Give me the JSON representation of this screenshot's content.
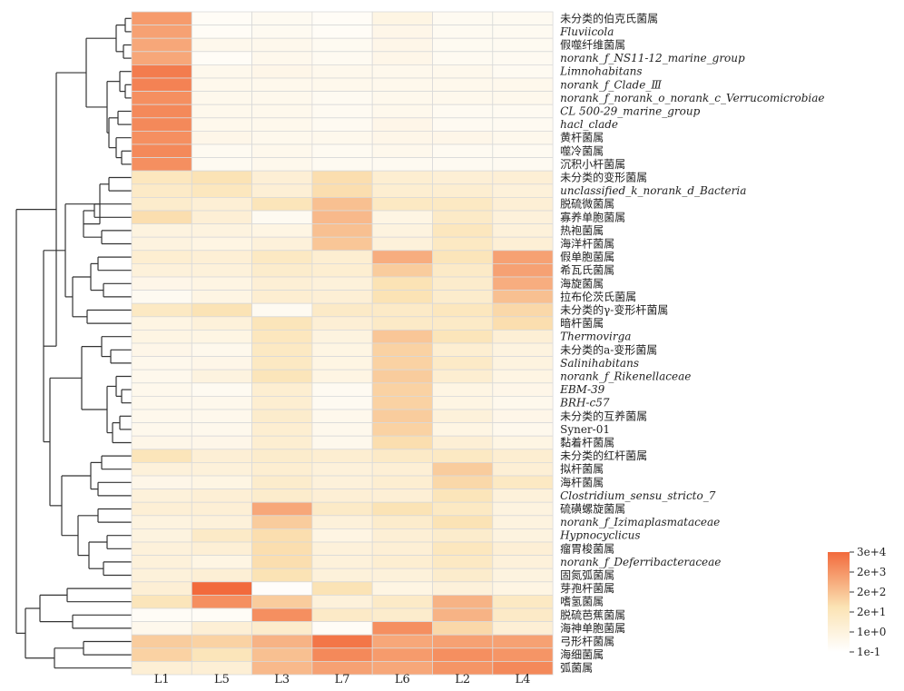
{
  "chart_data": {
    "type": "heatmap",
    "title": "",
    "xlabel": "",
    "ylabel": "",
    "columns": [
      "L1",
      "L5",
      "L3",
      "L7",
      "L6",
      "L2",
      "L4"
    ],
    "rows": [
      {
        "label": "未分类的伯克氏菌属",
        "italic": false,
        "values": [
          2.8,
          0.2,
          0.3,
          0.2,
          0.6,
          0.3,
          0.3
        ]
      },
      {
        "label": "Fluviicola",
        "italic": true,
        "values": [
          2.7,
          0.2,
          0.3,
          0.2,
          0.5,
          0.3,
          0.3
        ]
      },
      {
        "label": "假噬纤维菌属",
        "italic": false,
        "values": [
          2.6,
          0.4,
          0.4,
          0.3,
          0.5,
          0.3,
          0.3
        ]
      },
      {
        "label": "norank_f_NS11-12_marine_group",
        "italic": true,
        "values": [
          2.6,
          0.2,
          0.4,
          0.3,
          0.5,
          0.3,
          0.3
        ]
      },
      {
        "label": "Limnohabitans",
        "italic": true,
        "values": [
          3.3,
          0.4,
          0.5,
          0.4,
          0.4,
          0.4,
          0.3
        ]
      },
      {
        "label": "norank_f_Clade_Ⅲ",
        "italic": true,
        "values": [
          3.2,
          0.4,
          0.4,
          0.4,
          0.4,
          0.4,
          0.4
        ]
      },
      {
        "label": "norank_f_norank_o_norank_c_Verrucomicrobiae",
        "italic": true,
        "values": [
          3.0,
          0.4,
          0.4,
          0.3,
          0.4,
          0.4,
          0.4
        ]
      },
      {
        "label": "CL 500-29_marine_group",
        "italic": true,
        "values": [
          3.1,
          0.4,
          0.4,
          0.3,
          0.4,
          0.3,
          0.3
        ]
      },
      {
        "label": "hacl_clade",
        "italic": true,
        "values": [
          3.1,
          0.4,
          0.4,
          0.3,
          0.5,
          0.3,
          0.3
        ]
      },
      {
        "label": "黄杆菌属",
        "italic": false,
        "values": [
          3.0,
          0.5,
          0.4,
          0.4,
          0.5,
          0.5,
          0.4
        ]
      },
      {
        "label": "噬冷菌属",
        "italic": false,
        "values": [
          3.1,
          0.3,
          0.4,
          0.3,
          0.4,
          0.3,
          0.3
        ]
      },
      {
        "label": "沉积小杆菌属",
        "italic": false,
        "values": [
          3.0,
          0.3,
          0.4,
          0.3,
          0.3,
          0.3,
          0.3
        ]
      },
      {
        "label": "未分类的变形菌属",
        "italic": false,
        "values": [
          1.4,
          1.6,
          0.9,
          1.7,
          1.0,
          0.9,
          0.9
        ]
      },
      {
        "label": "unclassified_k_norank_d_Bacteria",
        "italic": true,
        "values": [
          1.2,
          1.4,
          0.9,
          1.7,
          1.0,
          1.0,
          0.8
        ]
      },
      {
        "label": "脱硫微菌属",
        "italic": false,
        "values": [
          1.1,
          0.9,
          1.5,
          2.2,
          1.3,
          1.3,
          0.9
        ]
      },
      {
        "label": "寡养单胞菌属",
        "italic": false,
        "values": [
          1.7,
          0.9,
          0.3,
          2.3,
          0.6,
          1.2,
          0.8
        ]
      },
      {
        "label": "热袍菌属",
        "italic": false,
        "values": [
          0.7,
          0.7,
          0.6,
          2.2,
          0.7,
          1.4,
          0.8
        ]
      },
      {
        "label": "海洋杆菌属",
        "italic": false,
        "values": [
          0.7,
          0.6,
          0.8,
          2.1,
          0.8,
          1.3,
          0.9
        ]
      },
      {
        "label": "假单胞菌属",
        "italic": false,
        "values": [
          1.0,
          0.9,
          1.3,
          1.0,
          2.5,
          1.5,
          2.7
        ]
      },
      {
        "label": "希瓦氏菌属",
        "italic": false,
        "values": [
          0.8,
          0.8,
          1.1,
          1.0,
          2.0,
          1.2,
          2.7
        ]
      },
      {
        "label": "海旋菌属",
        "italic": false,
        "values": [
          0.5,
          0.6,
          0.9,
          0.8,
          1.6,
          1.1,
          2.5
        ]
      },
      {
        "label": "拉布伦茨氏菌属",
        "italic": false,
        "values": [
          0.3,
          0.6,
          1.0,
          0.9,
          1.6,
          1.1,
          2.2
        ]
      },
      {
        "label": "未分类的γ-变形杆菌属",
        "italic": false,
        "values": [
          1.3,
          1.6,
          0.3,
          1.2,
          1.2,
          1.4,
          1.8
        ]
      },
      {
        "label": "暗杆菌属",
        "italic": false,
        "values": [
          0.6,
          0.8,
          1.5,
          0.9,
          1.2,
          1.2,
          1.7
        ]
      },
      {
        "label": "Thermovirga",
        "italic": true,
        "values": [
          0.6,
          0.6,
          1.4,
          0.7,
          2.1,
          1.5,
          0.9
        ]
      },
      {
        "label": "未分类的a-变形菌属",
        "italic": false,
        "values": [
          0.5,
          0.4,
          1.3,
          0.6,
          1.9,
          1.0,
          0.7
        ]
      },
      {
        "label": "Salinihabitans",
        "italic": true,
        "values": [
          0.4,
          0.5,
          1.3,
          0.6,
          1.9,
          1.2,
          0.7
        ]
      },
      {
        "label": "norank_f_Rikenellaceae",
        "italic": true,
        "values": [
          0.4,
          0.7,
          1.5,
          0.6,
          2.0,
          1.0,
          0.6
        ]
      },
      {
        "label": "EBM-39",
        "italic": true,
        "values": [
          0.4,
          0.3,
          1.0,
          0.3,
          1.9,
          0.6,
          0.5
        ]
      },
      {
        "label": "BRH-c57",
        "italic": true,
        "values": [
          0.4,
          0.4,
          1.0,
          0.3,
          1.9,
          0.6,
          0.4
        ]
      },
      {
        "label": "未分类的互养菌属",
        "italic": false,
        "values": [
          0.4,
          0.4,
          1.1,
          0.4,
          2.0,
          0.8,
          0.5
        ]
      },
      {
        "label": "Syner-01",
        "italic": false,
        "values": [
          0.4,
          0.4,
          1.0,
          0.4,
          1.9,
          0.6,
          0.4
        ]
      },
      {
        "label": "黏着杆菌属",
        "italic": false,
        "values": [
          0.5,
          0.5,
          1.0,
          0.4,
          1.7,
          0.9,
          0.6
        ]
      },
      {
        "label": "未分类的红杆菌属",
        "italic": false,
        "values": [
          1.5,
          0.9,
          1.1,
          1.0,
          1.2,
          1.3,
          1.0
        ]
      },
      {
        "label": "拟杆菌属",
        "italic": false,
        "values": [
          0.8,
          0.8,
          1.0,
          0.8,
          0.9,
          2.0,
          0.9
        ]
      },
      {
        "label": "海杆菌属",
        "italic": false,
        "values": [
          0.5,
          0.6,
          1.1,
          0.8,
          1.0,
          1.8,
          1.3
        ]
      },
      {
        "label": "Clostridium_sensu_stricto_7",
        "italic": true,
        "values": [
          0.8,
          0.9,
          1.1,
          0.9,
          0.9,
          1.5,
          0.8
        ]
      },
      {
        "label": "硫磺螺旋菌属",
        "italic": false,
        "values": [
          0.9,
          0.9,
          2.6,
          1.2,
          1.6,
          1.3,
          0.7
        ]
      },
      {
        "label": "norank_f_Izimaplasmataceae",
        "italic": true,
        "values": [
          0.7,
          0.8,
          2.0,
          0.8,
          1.1,
          1.6,
          0.7
        ]
      },
      {
        "label": "Hypnocyclicus",
        "italic": true,
        "values": [
          0.7,
          1.2,
          1.7,
          0.6,
          0.9,
          1.1,
          0.7
        ]
      },
      {
        "label": "瘤胃梭菌属",
        "italic": false,
        "values": [
          0.8,
          0.9,
          1.7,
          0.8,
          0.9,
          1.4,
          0.9
        ]
      },
      {
        "label": "norank_f_Deferribacteraceae",
        "italic": true,
        "values": [
          0.8,
          0.6,
          1.7,
          0.8,
          1.0,
          1.3,
          0.8
        ]
      },
      {
        "label": "固氮弧菌属",
        "italic": false,
        "values": [
          0.8,
          0.9,
          1.6,
          0.8,
          0.8,
          1.1,
          0.7
        ]
      },
      {
        "label": "芽孢杆菌属",
        "italic": false,
        "values": [
          0.9,
          3.6,
          0.1,
          1.6,
          0.6,
          0.8,
          0.6
        ]
      },
      {
        "label": "嗜氢菌属",
        "italic": false,
        "values": [
          1.5,
          3.0,
          2.0,
          0.8,
          1.2,
          2.4,
          1.3
        ]
      },
      {
        "label": "脱硫芭蕉菌属",
        "italic": false,
        "values": [
          0.2,
          0.2,
          3.0,
          1.2,
          1.1,
          2.4,
          1.2
        ]
      },
      {
        "label": "海神单胞菌属",
        "italic": false,
        "values": [
          0.4,
          0.9,
          1.1,
          0.2,
          3.0,
          1.8,
          0.9
        ]
      },
      {
        "label": "弓形杆菌属",
        "italic": false,
        "values": [
          2.0,
          1.9,
          2.4,
          3.4,
          2.6,
          2.7,
          2.7
        ]
      },
      {
        "label": "海细菌属",
        "italic": false,
        "values": [
          1.9,
          1.5,
          2.2,
          3.1,
          2.8,
          3.0,
          2.9
        ]
      },
      {
        "label": "弧菌属",
        "italic": false,
        "values": [
          0.9,
          0.9,
          2.3,
          2.7,
          2.6,
          2.9,
          3.1
        ]
      }
    ],
    "color_scale": {
      "low": "#ffffff",
      "mid": "#fbe3b4",
      "high": "#f26a3c",
      "ticks": [
        "3e+4",
        "2e+3",
        "2e+2",
        "2e+1",
        "1e+0",
        "1e-1"
      ]
    }
  }
}
